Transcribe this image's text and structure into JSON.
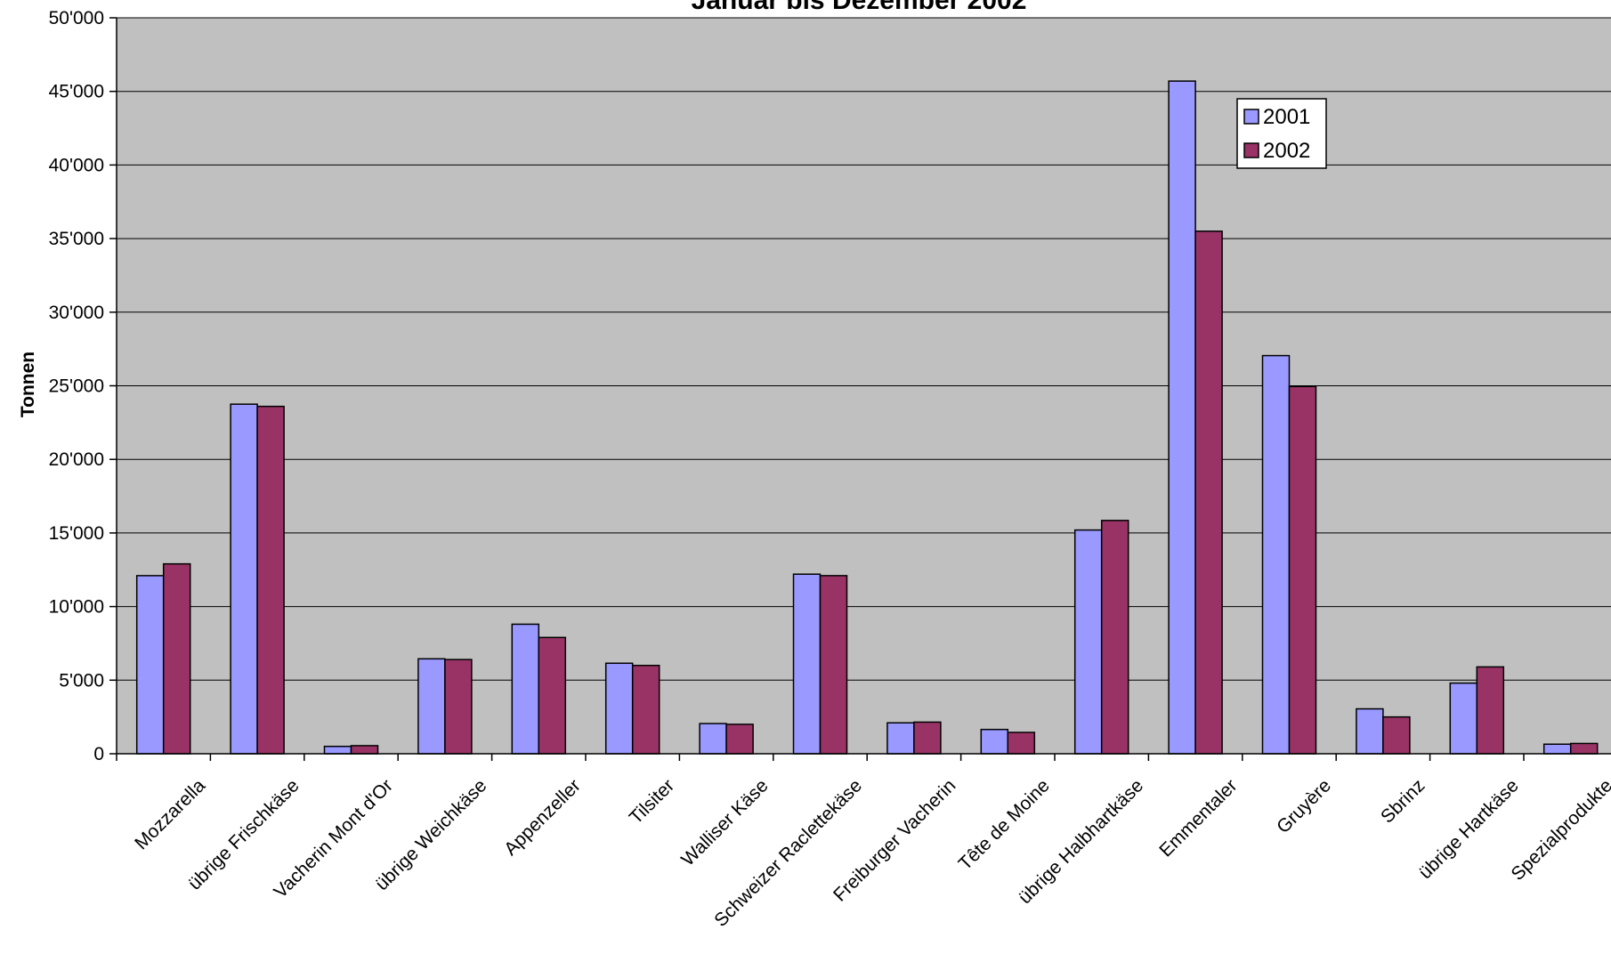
{
  "chart_data": {
    "type": "bar",
    "title": "Januar bis Dezember 2002",
    "xlabel": "",
    "ylabel": "Tonnen",
    "ylim": [
      0,
      50000
    ],
    "y_ticks": [
      "0",
      "5'000",
      "10'000",
      "15'000",
      "20'000",
      "25'000",
      "30'000",
      "35'000",
      "40'000",
      "45'000",
      "50'000"
    ],
    "grid": true,
    "legend_position": "top-right",
    "categories": [
      "Mozzarella",
      "übrige Frischkäse",
      "Vacherin Mont d'Or",
      "übrige Weichkäse",
      "Appenzeller",
      "Tilsiter",
      "Walliser Käse",
      "Schweizer Raclettekäse",
      "Freiburger Vacherin",
      "Tête de Moine",
      "übrige Halbhartkäse",
      "Emmentaler",
      "Gruyère",
      "Sbrinz",
      "übrige Hartkäse",
      "Spezialprodukte"
    ],
    "series": [
      {
        "name": "2001",
        "color": "#9999ff",
        "values": [
          12100,
          23750,
          500,
          6450,
          8800,
          6150,
          2050,
          12200,
          2100,
          1650,
          15200,
          45700,
          27050,
          3050,
          4800,
          650
        ]
      },
      {
        "name": "2002",
        "color": "#993366",
        "values": [
          12900,
          23600,
          550,
          6400,
          7900,
          6000,
          2000,
          12100,
          2150,
          1450,
          15850,
          35500,
          24950,
          2500,
          5900,
          700
        ]
      }
    ],
    "plot_background": "#c0c0c0"
  }
}
